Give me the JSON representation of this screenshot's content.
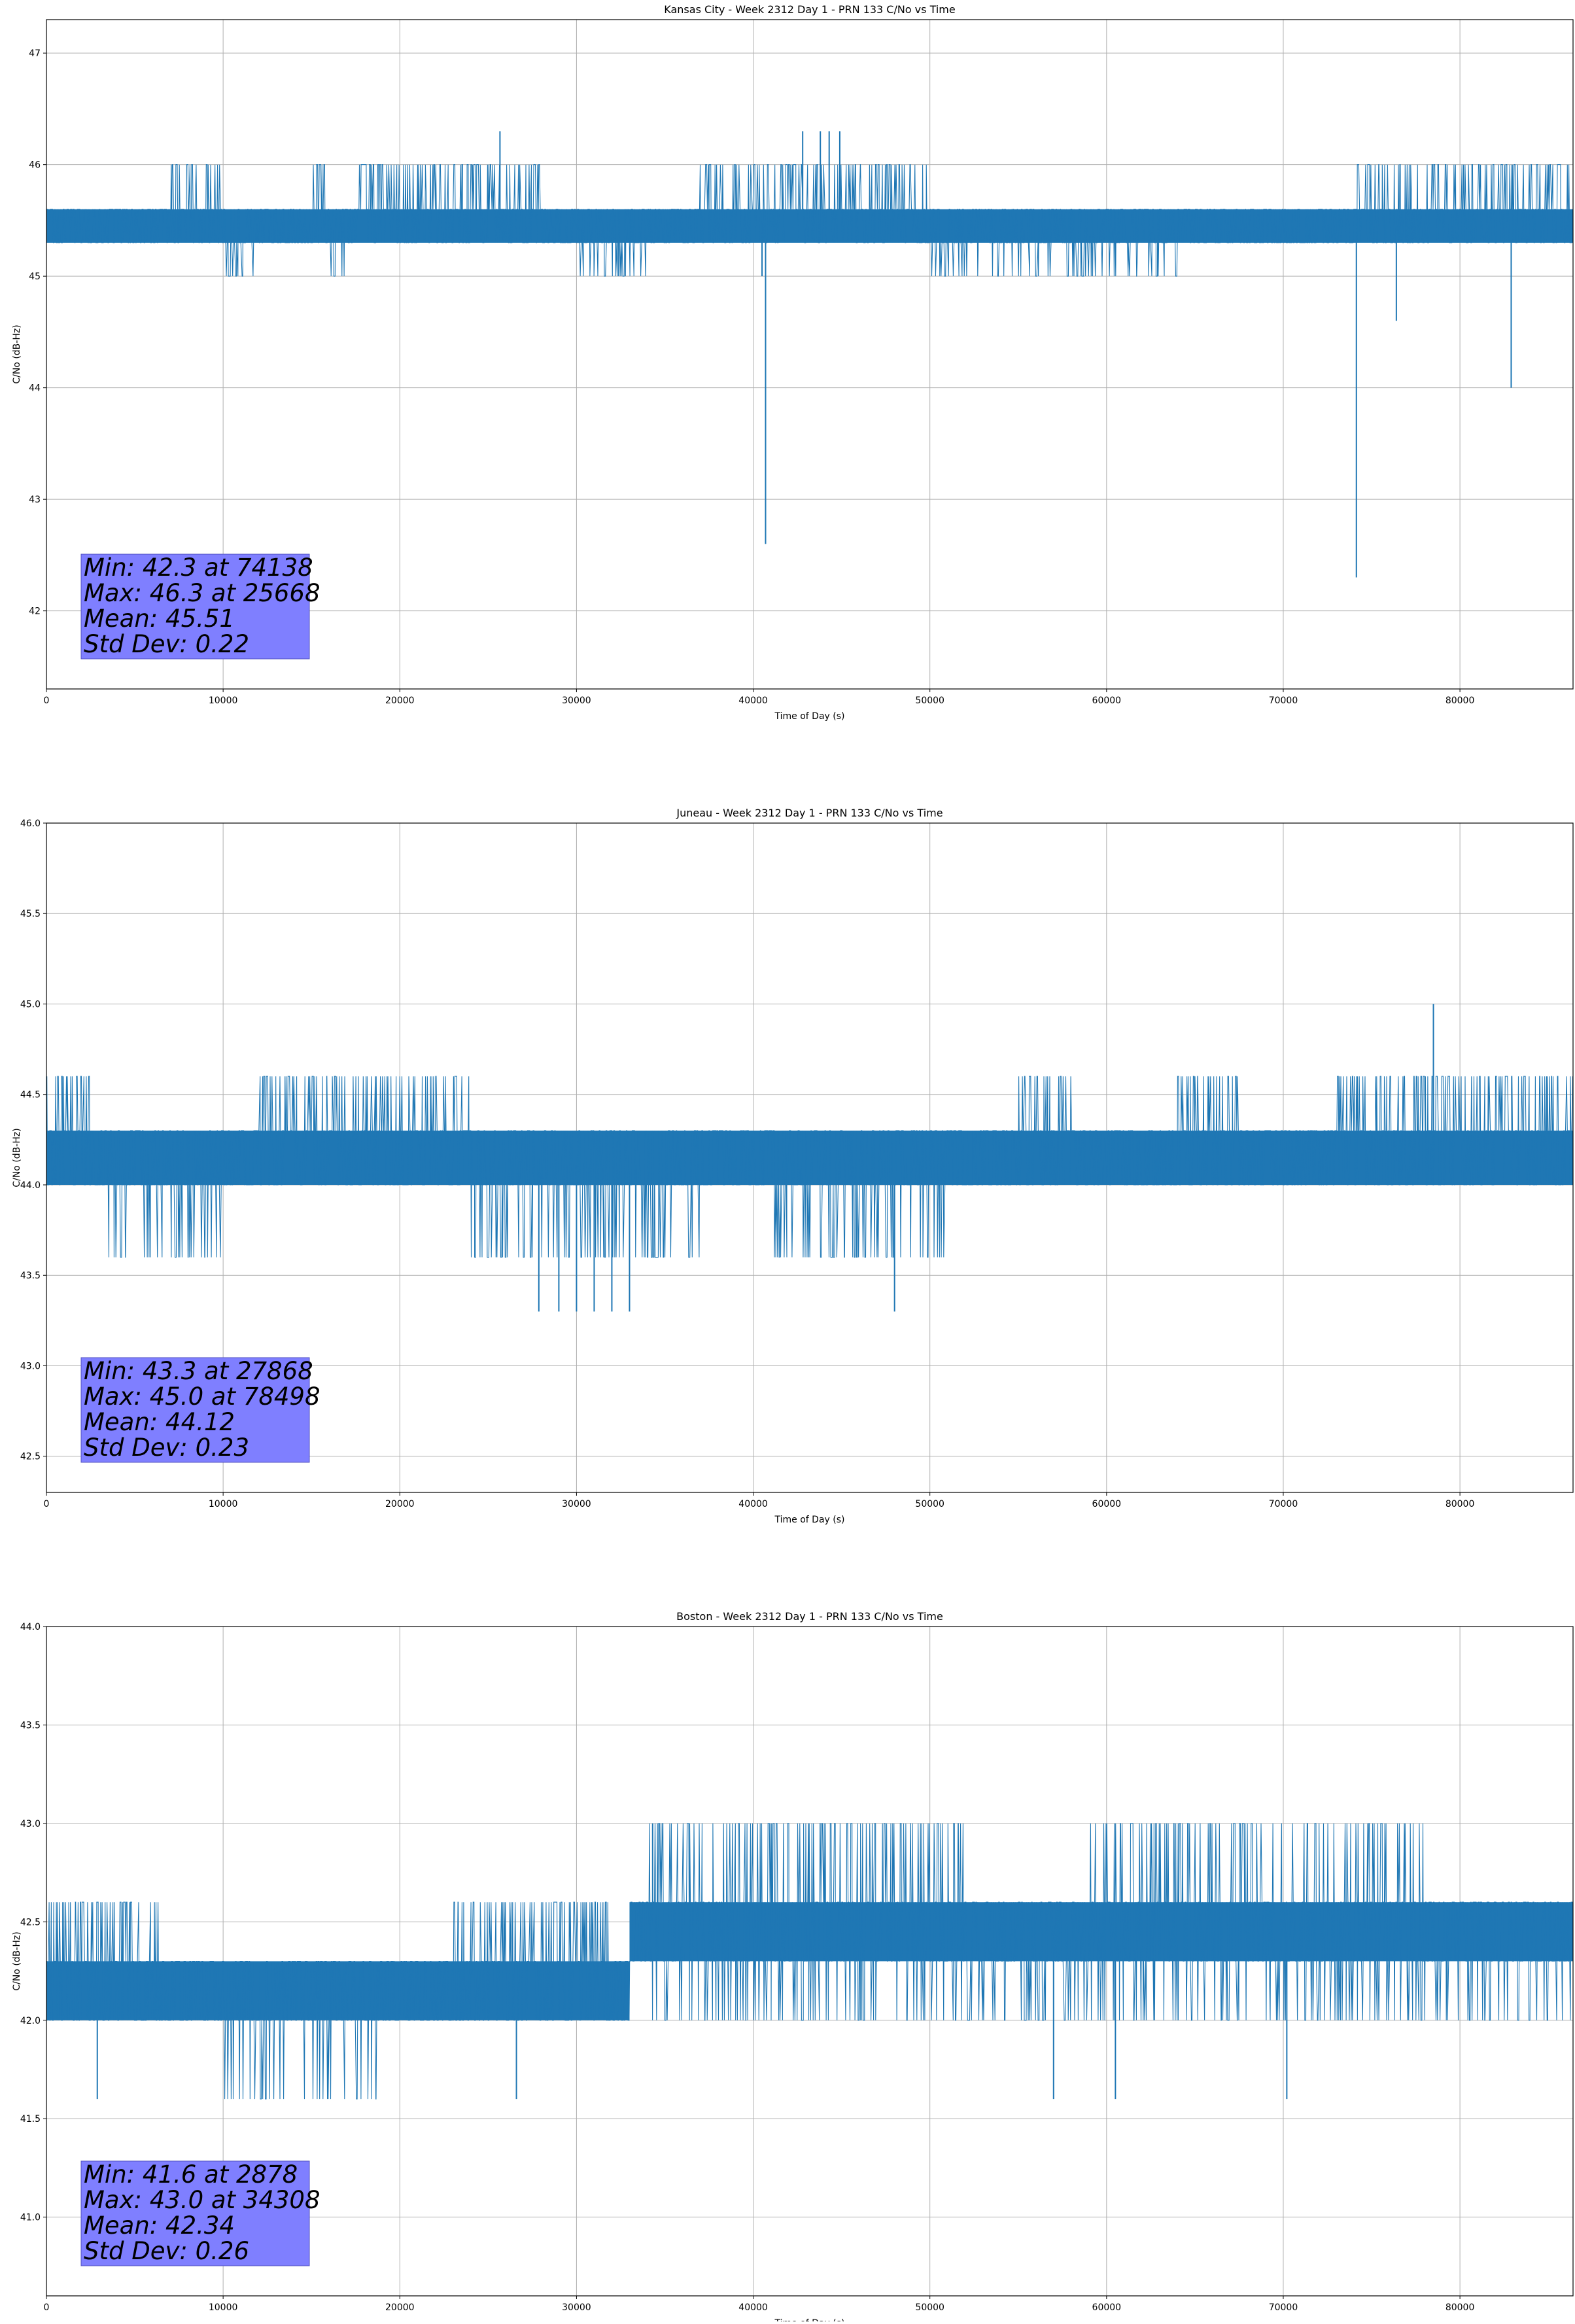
{
  "chart_data": [
    {
      "type": "line",
      "title": "Kansas City - Week 2312 Day 1 - PRN 133 C/No vs Time",
      "xlabel": "Time of Day (s)",
      "ylabel": "C/No (dB-Hz)",
      "xlim": [
        0,
        86400
      ],
      "ylim": [
        41.3,
        47.3
      ],
      "xticks": [
        "0",
        "10000",
        "20000",
        "30000",
        "40000",
        "50000",
        "60000",
        "70000",
        "80000"
      ],
      "yticks": [
        "42",
        "43",
        "44",
        "45",
        "46",
        "47"
      ],
      "grid": true,
      "series": [
        {
          "color": "#1f77b4",
          "levels": [
            45.3,
            45.6
          ],
          "upper_bursts": [
            {
              "x": [
                7000,
                10000
              ],
              "y": 46.0
            },
            {
              "x": [
                15000,
                16000
              ],
              "y": 46.0
            },
            {
              "x": [
                17500,
                28000
              ],
              "y": 46.0
            },
            {
              "x": [
                37000,
                41000
              ],
              "y": 46.0
            },
            {
              "x": [
                41000,
                50000
              ],
              "y": 46.0
            },
            {
              "x": [
                74000,
                86400
              ],
              "y": 46.0
            }
          ],
          "lower_bursts": [
            {
              "x": [
                10000,
                12000
              ],
              "y": 45.0
            },
            {
              "x": [
                16000,
                17500
              ],
              "y": 45.0
            },
            {
              "x": [
                30000,
                34000
              ],
              "y": 45.0
            },
            {
              "x": [
                50000,
                64000
              ],
              "y": 45.0
            }
          ],
          "spikes": [
            {
              "x": 25668,
              "y": 46.3
            },
            {
              "x": 42800,
              "y": 46.3
            },
            {
              "x": 43800,
              "y": 46.3
            },
            {
              "x": 44300,
              "y": 46.3
            },
            {
              "x": 44900,
              "y": 46.3
            },
            {
              "x": 40700,
              "y": 42.6
            },
            {
              "x": 40500,
              "y": 45.0
            },
            {
              "x": 74138,
              "y": 42.3
            },
            {
              "x": 76400,
              "y": 44.6
            },
            {
              "x": 82900,
              "y": 44.0
            }
          ]
        }
      ],
      "annotation": [
        "Min: 42.3 at 74138",
        "Max: 46.3 at 25668",
        "Mean: 45.51",
        "Std Dev: 0.22"
      ]
    },
    {
      "type": "line",
      "title": "Juneau - Week 2312 Day 1 - PRN 133 C/No vs Time",
      "xlabel": "Time of Day (s)",
      "ylabel": "C/No (dB-Hz)",
      "xlim": [
        0,
        86400
      ],
      "ylim": [
        42.3,
        46.0
      ],
      "xticks": [
        "0",
        "10000",
        "20000",
        "30000",
        "40000",
        "50000",
        "60000",
        "70000",
        "80000"
      ],
      "yticks": [
        "42.5",
        "43.0",
        "43.5",
        "44.0",
        "44.5",
        "45.0",
        "45.5",
        "46.0"
      ],
      "grid": true,
      "series": [
        {
          "color": "#1f77b4",
          "levels": [
            44.0,
            44.3
          ],
          "upper_bursts": [
            {
              "x": [
                0,
                2500
              ],
              "y": 44.6
            },
            {
              "x": [
                12000,
                24000
              ],
              "y": 44.6
            },
            {
              "x": [
                55000,
                58000
              ],
              "y": 44.6
            },
            {
              "x": [
                64000,
                68000
              ],
              "y": 44.6
            },
            {
              "x": [
                73000,
                86400
              ],
              "y": 44.6
            }
          ],
          "lower_bursts": [
            {
              "x": [
                3000,
                10000
              ],
              "y": 43.6
            },
            {
              "x": [
                24000,
                37000
              ],
              "y": 43.6
            },
            {
              "x": [
                41000,
                51000
              ],
              "y": 43.6
            }
          ],
          "spikes": [
            {
              "x": 27868,
              "y": 43.3
            },
            {
              "x": 29000,
              "y": 43.3
            },
            {
              "x": 30000,
              "y": 43.3
            },
            {
              "x": 31000,
              "y": 43.3
            },
            {
              "x": 32000,
              "y": 43.3
            },
            {
              "x": 33000,
              "y": 43.3
            },
            {
              "x": 48000,
              "y": 43.3
            },
            {
              "x": 78498,
              "y": 45.0
            }
          ]
        }
      ],
      "annotation": [
        "Min: 43.3 at 27868",
        "Max: 45.0 at 78498",
        "Mean: 44.12",
        "Std Dev: 0.23"
      ]
    },
    {
      "type": "line",
      "title": "Boston - Week 2312 Day 1 - PRN 133 C/No vs Time",
      "xlabel": "Time of Day (s)",
      "ylabel": "C/No (dB-Hz)",
      "xlim": [
        0,
        86400
      ],
      "ylim": [
        40.6,
        44.0
      ],
      "xticks": [
        "0",
        "10000",
        "20000",
        "30000",
        "40000",
        "50000",
        "60000",
        "70000",
        "80000"
      ],
      "yticks": [
        "41.0",
        "41.5",
        "42.0",
        "42.5",
        "43.0",
        "43.5",
        "44.0"
      ],
      "grid": true,
      "series": [
        {
          "color": "#1f77b4",
          "segments": [
            {
              "x": [
                0,
                33000
              ],
              "levels": [
                42.0,
                42.3
              ]
            },
            {
              "x": [
                33000,
                86400
              ],
              "levels": [
                42.3,
                42.6
              ]
            }
          ],
          "upper_bursts": [
            {
              "x": [
                0,
                6500
              ],
              "y": 42.6
            },
            {
              "x": [
                23000,
                32000
              ],
              "y": 42.6
            },
            {
              "x": [
                34000,
                52000
              ],
              "y": 43.0
            },
            {
              "x": [
                59000,
                78000
              ],
              "y": 43.0
            }
          ],
          "lower_bursts": [
            {
              "x": [
                10000,
                19000
              ],
              "y": 41.6
            },
            {
              "x": [
                34000,
                86400
              ],
              "y": 42.0
            }
          ],
          "spikes": [
            {
              "x": 2878,
              "y": 41.6
            },
            {
              "x": 34308,
              "y": 43.0
            },
            {
              "x": 57000,
              "y": 41.6
            },
            {
              "x": 60500,
              "y": 41.6
            },
            {
              "x": 70200,
              "y": 41.6
            },
            {
              "x": 26600,
              "y": 41.6
            }
          ]
        }
      ],
      "annotation": [
        "Min: 41.6 at 2878",
        "Max: 43.0 at 34308",
        "Mean: 42.34",
        "Std Dev: 0.26"
      ]
    }
  ]
}
